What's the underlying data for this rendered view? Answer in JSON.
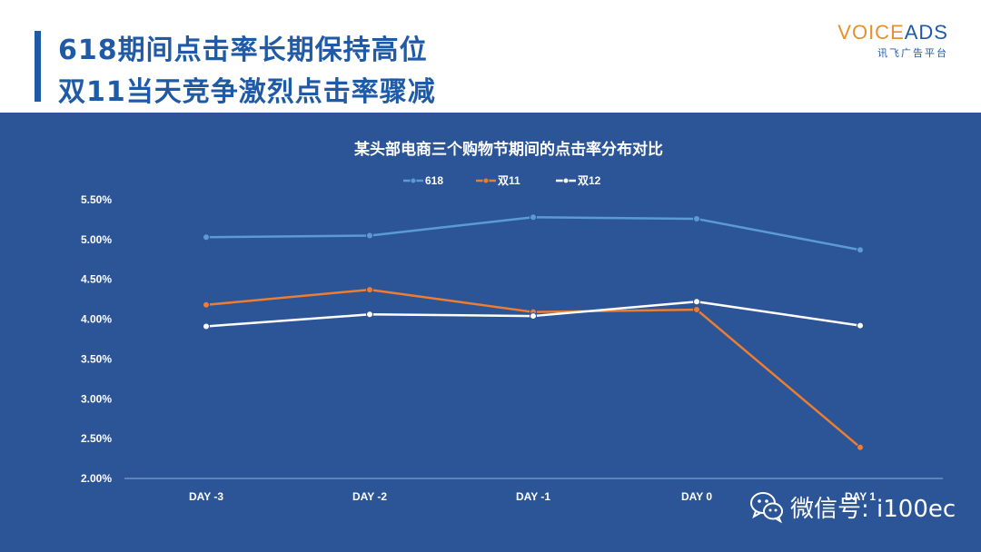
{
  "header": {
    "line1": "618期间点击率长期保持高位",
    "line2": "双11当天竞争激烈点击率骤减"
  },
  "logo": {
    "voice": "VOICE",
    "ads": "ADS",
    "subtitle": "讯飞广告平台"
  },
  "colors": {
    "panel": "#2c5597",
    "accent": "#1f5aa6",
    "series_618": "#5b9bd5",
    "series_d11": "#ed7d31",
    "series_d12": "#ffffff"
  },
  "chart_data": {
    "type": "line",
    "title": "某头部电商三个购物节期间的点击率分布对比",
    "categories": [
      "DAY -3",
      "DAY -2",
      "DAY -1",
      "DAY 0",
      "DAY 1"
    ],
    "y_ticks": [
      "2.00%",
      "2.50%",
      "3.00%",
      "3.50%",
      "4.00%",
      "4.50%",
      "5.00%",
      "5.50%"
    ],
    "ylim": [
      2.0,
      5.5
    ],
    "legend_position": "top-center",
    "series": [
      {
        "name": "618",
        "color": "#5b9bd5",
        "values": [
          5.03,
          5.05,
          5.28,
          5.26,
          4.87
        ]
      },
      {
        "name": "双11",
        "color": "#ed7d31",
        "values": [
          4.18,
          4.37,
          4.09,
          4.12,
          2.39
        ]
      },
      {
        "name": "双12",
        "color": "#ffffff",
        "values": [
          3.91,
          4.06,
          4.04,
          4.22,
          3.92
        ]
      }
    ]
  },
  "watermark": {
    "text": "微信号: i100ec",
    "icon": "wechat-icon"
  }
}
